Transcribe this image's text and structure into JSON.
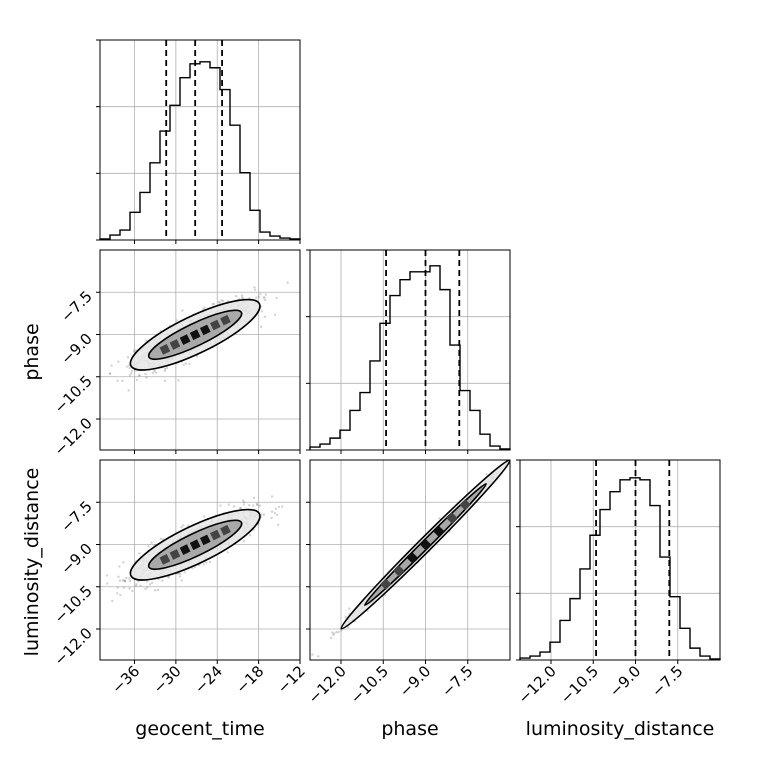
{
  "chart_data": {
    "type": "corner",
    "parameters": [
      "geocent_time",
      "phase",
      "luminosity_distance"
    ],
    "ranges": {
      "geocent_time": [
        -41,
        -12
      ],
      "phase": [
        -13.1,
        -6.0
      ],
      "luminosity_distance": [
        -13.1,
        -6.0
      ]
    },
    "ticks": {
      "geocent_time": {
        "values": [
          -36,
          -30,
          -24,
          -18,
          -12
        ],
        "labels": [
          "−36",
          "−30",
          "−24",
          "−18",
          "−12"
        ]
      },
      "phase": {
        "values": [
          -12.0,
          -10.5,
          -9.0,
          -7.5
        ],
        "labels": [
          "−12.0",
          "−10.5",
          "−9.0",
          "−7.5"
        ]
      },
      "luminosity_distance": {
        "values": [
          -12.0,
          -10.5,
          -9.0,
          -7.5
        ],
        "labels": [
          "−12.0",
          "−10.5",
          "−9.0",
          "−7.5"
        ]
      }
    },
    "histograms": {
      "geocent_time": {
        "edges": [
          -41,
          -39.55,
          -38.1,
          -36.65,
          -35.2,
          -33.75,
          -32.3,
          -30.85,
          -29.4,
          -27.95,
          -26.5,
          -25.05,
          -23.6,
          -22.15,
          -20.7,
          -19.25,
          -17.8,
          -16.35,
          -14.9,
          -13.45,
          -12
        ],
        "counts": [
          0.005,
          0.025,
          0.05,
          0.14,
          0.24,
          0.39,
          0.55,
          0.68,
          0.82,
          0.89,
          0.9,
          0.87,
          0.76,
          0.58,
          0.34,
          0.15,
          0.04,
          0.02,
          0.01,
          0.005
        ],
        "quantiles": [
          -31.4,
          -27.2,
          -23.3
        ]
      },
      "phase": {
        "edges": [
          -13.1,
          -12.745,
          -12.39,
          -12.035,
          -11.68,
          -11.325,
          -10.97,
          -10.615,
          -10.26,
          -9.905,
          -9.55,
          -9.195,
          -8.84,
          -8.485,
          -8.13,
          -7.775,
          -7.42,
          -7.065,
          -6.71,
          -6.355,
          -6.0
        ],
        "counts": [
          0.015,
          0.03,
          0.06,
          0.1,
          0.2,
          0.29,
          0.45,
          0.64,
          0.78,
          0.86,
          0.9,
          0.9,
          0.93,
          0.81,
          0.53,
          0.3,
          0.2,
          0.08,
          0.02,
          0.005
        ],
        "quantiles": [
          -10.4,
          -9.0,
          -7.8
        ]
      },
      "luminosity_distance": {
        "edges": [
          -13.1,
          -12.745,
          -12.39,
          -12.035,
          -11.68,
          -11.325,
          -10.97,
          -10.615,
          -10.26,
          -9.905,
          -9.55,
          -9.195,
          -8.84,
          -8.485,
          -8.13,
          -7.775,
          -7.42,
          -7.065,
          -6.71,
          -6.355,
          -6.0
        ],
        "counts": [
          0.01,
          0.02,
          0.04,
          0.09,
          0.2,
          0.31,
          0.46,
          0.63,
          0.76,
          0.85,
          0.91,
          0.92,
          0.91,
          0.78,
          0.52,
          0.32,
          0.16,
          0.06,
          0.02,
          0.005
        ],
        "quantiles": [
          -10.4,
          -9.0,
          -7.8
        ]
      }
    },
    "scatter_pairs": [
      {
        "x": "geocent_time",
        "y": "phase",
        "slope": 0.118,
        "intercept": -5.8,
        "scatter_sd": 0.33
      },
      {
        "x": "geocent_time",
        "y": "luminosity_distance",
        "slope": 0.118,
        "intercept": -5.8,
        "scatter_sd": 0.33
      },
      {
        "x": "phase",
        "y": "luminosity_distance",
        "slope": 1.0,
        "intercept": 0.0,
        "scatter_sd": 0.12
      }
    ],
    "grid": true,
    "colors": {
      "line": "#000000",
      "points": "#808080",
      "grid": "#b0b0b0",
      "contour_fill": "#9a9a9a"
    }
  }
}
